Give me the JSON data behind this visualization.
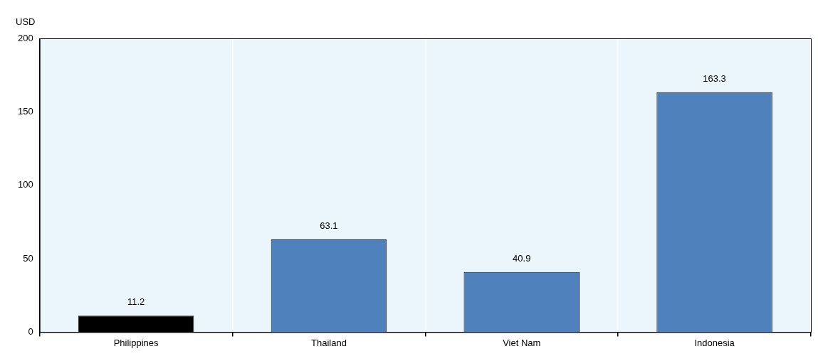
{
  "chart_data": {
    "type": "bar",
    "ylabel": "USD",
    "categories": [
      "Philippines",
      "Thailand",
      "Viet Nam",
      "Indonesia"
    ],
    "values": [
      11.2,
      63.1,
      40.9,
      163.3
    ],
    "colors": [
      "#000000",
      "#4f81bd",
      "#4f81bd",
      "#4f81bd"
    ],
    "ylim": [
      0,
      200
    ],
    "yticks": [
      0,
      50,
      100,
      150,
      200
    ],
    "grid": "x",
    "legend": false,
    "data_labels": true
  }
}
